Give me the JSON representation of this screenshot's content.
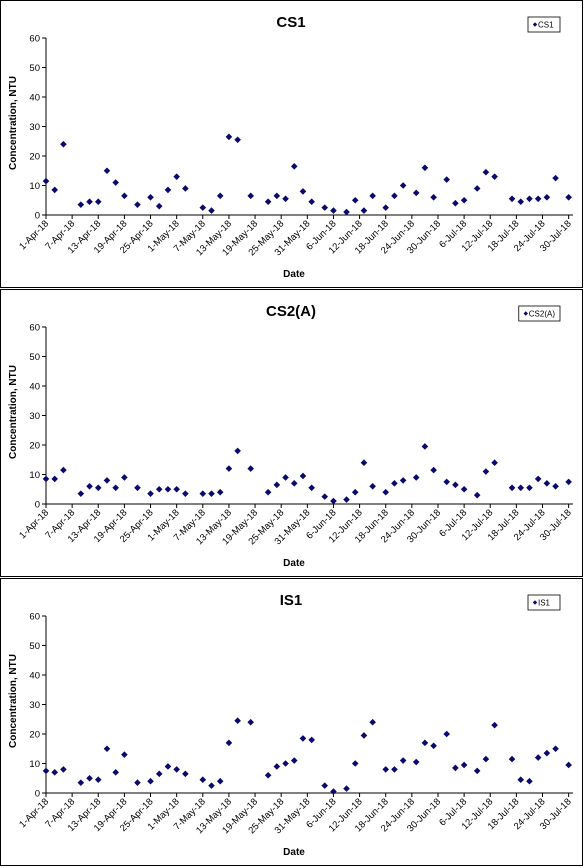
{
  "chart_data": [
    {
      "type": "scatter",
      "title": "CS1",
      "xlabel": "Date",
      "ylabel": "Concentration, NTU",
      "ylim": [
        0,
        60
      ],
      "yticks": [
        "0",
        "10",
        "20",
        "30",
        "40",
        "50",
        "60"
      ],
      "xlim": [
        "2018-04-01",
        "2018-07-31"
      ],
      "xticks": [
        "1-Apr-18",
        "7-Apr-18",
        "13-Apr-18",
        "19-Apr-18",
        "25-Apr-18",
        "1-May-18",
        "7-May-18",
        "13-May-18",
        "19-May-18",
        "25-May-18",
        "31-May-18",
        "6-Jun-18",
        "12-Jun-18",
        "18-Jun-18",
        "24-Jun-18",
        "30-Jun-18",
        "6-Jul-18",
        "12-Jul-18",
        "18-Jul-18",
        "24-Jul-18",
        "30-Jul-18"
      ],
      "grid": false,
      "legend": "top-right",
      "color": "#0a0a6e",
      "series": [
        {
          "name": "CS1",
          "points": [
            {
              "x": "2018-04-01",
              "y": 11.5
            },
            {
              "x": "2018-04-03",
              "y": 8.5
            },
            {
              "x": "2018-04-05",
              "y": 24
            },
            {
              "x": "2018-04-09",
              "y": 3.5
            },
            {
              "x": "2018-04-11",
              "y": 4.5
            },
            {
              "x": "2018-04-13",
              "y": 4.5
            },
            {
              "x": "2018-04-15",
              "y": 15
            },
            {
              "x": "2018-04-17",
              "y": 11
            },
            {
              "x": "2018-04-19",
              "y": 6.5
            },
            {
              "x": "2018-04-22",
              "y": 3.5
            },
            {
              "x": "2018-04-25",
              "y": 6
            },
            {
              "x": "2018-04-27",
              "y": 3
            },
            {
              "x": "2018-04-29",
              "y": 8.5
            },
            {
              "x": "2018-05-01",
              "y": 13
            },
            {
              "x": "2018-05-03",
              "y": 9
            },
            {
              "x": "2018-05-07",
              "y": 2.5
            },
            {
              "x": "2018-05-09",
              "y": 1.5
            },
            {
              "x": "2018-05-11",
              "y": 6.5
            },
            {
              "x": "2018-05-13",
              "y": 26.5
            },
            {
              "x": "2018-05-15",
              "y": 25.5
            },
            {
              "x": "2018-05-18",
              "y": 6.5
            },
            {
              "x": "2018-05-22",
              "y": 4.5
            },
            {
              "x": "2018-05-24",
              "y": 6.5
            },
            {
              "x": "2018-05-26",
              "y": 5.5
            },
            {
              "x": "2018-05-28",
              "y": 16.5
            },
            {
              "x": "2018-05-30",
              "y": 8
            },
            {
              "x": "2018-06-01",
              "y": 4.5
            },
            {
              "x": "2018-06-04",
              "y": 2.5
            },
            {
              "x": "2018-06-06",
              "y": 1.5
            },
            {
              "x": "2018-06-09",
              "y": 1
            },
            {
              "x": "2018-06-11",
              "y": 5
            },
            {
              "x": "2018-06-13",
              "y": 1.5
            },
            {
              "x": "2018-06-15",
              "y": 6.5
            },
            {
              "x": "2018-06-18",
              "y": 2.5
            },
            {
              "x": "2018-06-20",
              "y": 6.5
            },
            {
              "x": "2018-06-22",
              "y": 10
            },
            {
              "x": "2018-06-25",
              "y": 7.5
            },
            {
              "x": "2018-06-27",
              "y": 16
            },
            {
              "x": "2018-06-29",
              "y": 6
            },
            {
              "x": "2018-07-02",
              "y": 12
            },
            {
              "x": "2018-07-04",
              "y": 4
            },
            {
              "x": "2018-07-06",
              "y": 5
            },
            {
              "x": "2018-07-09",
              "y": 9
            },
            {
              "x": "2018-07-11",
              "y": 14.5
            },
            {
              "x": "2018-07-13",
              "y": 13
            },
            {
              "x": "2018-07-17",
              "y": 5.5
            },
            {
              "x": "2018-07-19",
              "y": 4.5
            },
            {
              "x": "2018-07-21",
              "y": 5.5
            },
            {
              "x": "2018-07-23",
              "y": 5.5
            },
            {
              "x": "2018-07-25",
              "y": 6
            },
            {
              "x": "2018-07-27",
              "y": 12.5
            },
            {
              "x": "2018-07-30",
              "y": 6
            }
          ]
        }
      ]
    },
    {
      "type": "scatter",
      "title": "CS2(A)",
      "xlabel": "Date",
      "ylabel": "Concentration, NTU",
      "ylim": [
        0,
        60
      ],
      "yticks": [
        "0",
        "10",
        "20",
        "30",
        "40",
        "50",
        "60"
      ],
      "xlim": [
        "2018-04-01",
        "2018-07-31"
      ],
      "xticks": [
        "1-Apr-18",
        "7-Apr-18",
        "13-Apr-18",
        "19-Apr-18",
        "25-Apr-18",
        "1-May-18",
        "7-May-18",
        "13-May-18",
        "19-May-18",
        "25-May-18",
        "31-May-18",
        "6-Jun-18",
        "12-Jun-18",
        "18-Jun-18",
        "24-Jun-18",
        "30-Jun-18",
        "6-Jul-18",
        "12-Jul-18",
        "18-Jul-18",
        "24-Jul-18",
        "30-Jul-18"
      ],
      "grid": false,
      "legend": "top-right",
      "color": "#0a0a6e",
      "series": [
        {
          "name": "CS2(A)",
          "points": [
            {
              "x": "2018-04-01",
              "y": 8.5
            },
            {
              "x": "2018-04-03",
              "y": 8.5
            },
            {
              "x": "2018-04-05",
              "y": 11.5
            },
            {
              "x": "2018-04-09",
              "y": 3.5
            },
            {
              "x": "2018-04-11",
              "y": 6
            },
            {
              "x": "2018-04-13",
              "y": 5.5
            },
            {
              "x": "2018-04-15",
              "y": 8
            },
            {
              "x": "2018-04-17",
              "y": 5.5
            },
            {
              "x": "2018-04-19",
              "y": 9
            },
            {
              "x": "2018-04-22",
              "y": 5.5
            },
            {
              "x": "2018-04-25",
              "y": 3.5
            },
            {
              "x": "2018-04-27",
              "y": 5
            },
            {
              "x": "2018-04-29",
              "y": 5
            },
            {
              "x": "2018-05-01",
              "y": 5
            },
            {
              "x": "2018-05-03",
              "y": 3.5
            },
            {
              "x": "2018-05-07",
              "y": 3.5
            },
            {
              "x": "2018-05-09",
              "y": 3.5
            },
            {
              "x": "2018-05-11",
              "y": 4
            },
            {
              "x": "2018-05-13",
              "y": 12
            },
            {
              "x": "2018-05-15",
              "y": 18
            },
            {
              "x": "2018-05-18",
              "y": 12
            },
            {
              "x": "2018-05-22",
              "y": 4
            },
            {
              "x": "2018-05-24",
              "y": 6.5
            },
            {
              "x": "2018-05-26",
              "y": 9
            },
            {
              "x": "2018-05-28",
              "y": 7
            },
            {
              "x": "2018-05-30",
              "y": 9.5
            },
            {
              "x": "2018-06-01",
              "y": 5.5
            },
            {
              "x": "2018-06-04",
              "y": 2.5
            },
            {
              "x": "2018-06-06",
              "y": 1
            },
            {
              "x": "2018-06-09",
              "y": 1.5
            },
            {
              "x": "2018-06-11",
              "y": 4
            },
            {
              "x": "2018-06-13",
              "y": 14
            },
            {
              "x": "2018-06-15",
              "y": 6
            },
            {
              "x": "2018-06-18",
              "y": 4
            },
            {
              "x": "2018-06-20",
              "y": 7
            },
            {
              "x": "2018-06-22",
              "y": 8
            },
            {
              "x": "2018-06-25",
              "y": 9
            },
            {
              "x": "2018-06-27",
              "y": 19.5
            },
            {
              "x": "2018-06-29",
              "y": 11.5
            },
            {
              "x": "2018-07-02",
              "y": 7.5
            },
            {
              "x": "2018-07-04",
              "y": 6.5
            },
            {
              "x": "2018-07-06",
              "y": 5
            },
            {
              "x": "2018-07-09",
              "y": 3
            },
            {
              "x": "2018-07-11",
              "y": 11
            },
            {
              "x": "2018-07-13",
              "y": 14
            },
            {
              "x": "2018-07-17",
              "y": 5.5
            },
            {
              "x": "2018-07-19",
              "y": 5.5
            },
            {
              "x": "2018-07-21",
              "y": 5.5
            },
            {
              "x": "2018-07-23",
              "y": 8.5
            },
            {
              "x": "2018-07-25",
              "y": 7
            },
            {
              "x": "2018-07-27",
              "y": 6
            },
            {
              "x": "2018-07-30",
              "y": 7.5
            }
          ]
        }
      ]
    },
    {
      "type": "scatter",
      "title": "IS1",
      "xlabel": "Date",
      "ylabel": "Concentration, NTU",
      "ylim": [
        0,
        60
      ],
      "yticks": [
        "0",
        "10",
        "20",
        "30",
        "40",
        "50",
        "60"
      ],
      "xlim": [
        "2018-04-01",
        "2018-07-31"
      ],
      "xticks": [
        "1-Apr-18",
        "7-Apr-18",
        "13-Apr-18",
        "19-Apr-18",
        "25-Apr-18",
        "1-May-18",
        "7-May-18",
        "13-May-18",
        "19-May-18",
        "25-May-18",
        "31-May-18",
        "6-Jun-18",
        "12-Jun-18",
        "18-Jun-18",
        "24-Jun-18",
        "30-Jun-18",
        "6-Jul-18",
        "12-Jul-18",
        "18-Jul-18",
        "24-Jul-18",
        "30-Jul-18"
      ],
      "grid": false,
      "legend": "top-right",
      "color": "#0a0a6e",
      "series": [
        {
          "name": "IS1",
          "points": [
            {
              "x": "2018-04-01",
              "y": 7.5
            },
            {
              "x": "2018-04-03",
              "y": 7
            },
            {
              "x": "2018-04-05",
              "y": 8
            },
            {
              "x": "2018-04-09",
              "y": 3.5
            },
            {
              "x": "2018-04-11",
              "y": 5
            },
            {
              "x": "2018-04-13",
              "y": 4.5
            },
            {
              "x": "2018-04-15",
              "y": 15
            },
            {
              "x": "2018-04-17",
              "y": 7
            },
            {
              "x": "2018-04-19",
              "y": 13
            },
            {
              "x": "2018-04-22",
              "y": 3.5
            },
            {
              "x": "2018-04-25",
              "y": 4
            },
            {
              "x": "2018-04-27",
              "y": 6.5
            },
            {
              "x": "2018-04-29",
              "y": 9
            },
            {
              "x": "2018-05-01",
              "y": 8
            },
            {
              "x": "2018-05-03",
              "y": 6.5
            },
            {
              "x": "2018-05-07",
              "y": 4.5
            },
            {
              "x": "2018-05-09",
              "y": 2.5
            },
            {
              "x": "2018-05-11",
              "y": 4
            },
            {
              "x": "2018-05-13",
              "y": 17
            },
            {
              "x": "2018-05-15",
              "y": 24.5
            },
            {
              "x": "2018-05-18",
              "y": 24
            },
            {
              "x": "2018-05-22",
              "y": 6
            },
            {
              "x": "2018-05-24",
              "y": 9
            },
            {
              "x": "2018-05-26",
              "y": 10
            },
            {
              "x": "2018-05-28",
              "y": 11
            },
            {
              "x": "2018-05-30",
              "y": 18.5
            },
            {
              "x": "2018-06-01",
              "y": 18
            },
            {
              "x": "2018-06-04",
              "y": 2.5
            },
            {
              "x": "2018-06-06",
              "y": 0.5
            },
            {
              "x": "2018-06-09",
              "y": 1.5
            },
            {
              "x": "2018-06-11",
              "y": 10
            },
            {
              "x": "2018-06-13",
              "y": 19.5
            },
            {
              "x": "2018-06-15",
              "y": 24
            },
            {
              "x": "2018-06-18",
              "y": 8
            },
            {
              "x": "2018-06-20",
              "y": 8
            },
            {
              "x": "2018-06-22",
              "y": 11
            },
            {
              "x": "2018-06-25",
              "y": 10.5
            },
            {
              "x": "2018-06-27",
              "y": 17
            },
            {
              "x": "2018-06-29",
              "y": 16
            },
            {
              "x": "2018-07-02",
              "y": 20
            },
            {
              "x": "2018-07-04",
              "y": 8.5
            },
            {
              "x": "2018-07-06",
              "y": 9.5
            },
            {
              "x": "2018-07-09",
              "y": 7.5
            },
            {
              "x": "2018-07-11",
              "y": 11.5
            },
            {
              "x": "2018-07-13",
              "y": 23
            },
            {
              "x": "2018-07-17",
              "y": 11.5
            },
            {
              "x": "2018-07-19",
              "y": 4.5
            },
            {
              "x": "2018-07-21",
              "y": 4
            },
            {
              "x": "2018-07-23",
              "y": 12
            },
            {
              "x": "2018-07-25",
              "y": 13.5
            },
            {
              "x": "2018-07-27",
              "y": 15
            },
            {
              "x": "2018-07-30",
              "y": 9.5
            }
          ]
        }
      ]
    }
  ]
}
